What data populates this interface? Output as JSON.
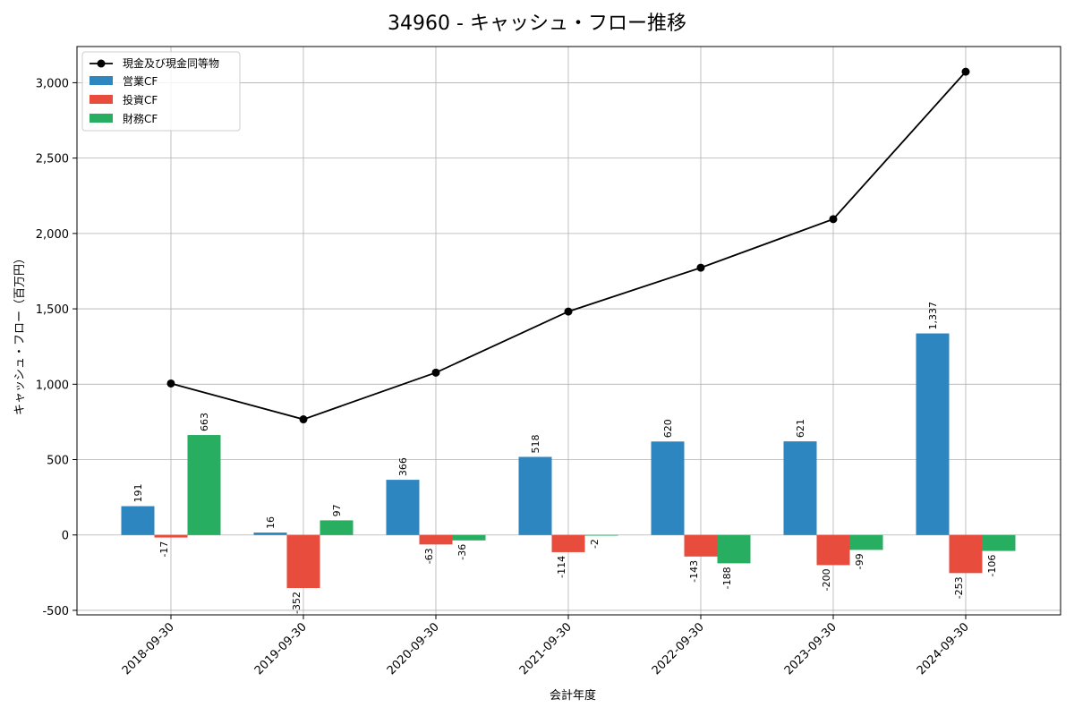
{
  "chart_data": {
    "type": "bar",
    "title": "34960 - キャッシュ・フロー推移",
    "xlabel": "会計年度",
    "ylabel": "キャッシュ・フロー（百万円）",
    "categories": [
      "2018-09-30",
      "2019-09-30",
      "2020-09-30",
      "2021-09-30",
      "2022-09-30",
      "2023-09-30",
      "2024-09-30"
    ],
    "ylim": [
      -530,
      3240
    ],
    "yticks": [
      -500,
      0,
      500,
      1000,
      1500,
      2000,
      2500,
      3000
    ],
    "ytick_labels": [
      "-500",
      "0",
      "500",
      "1,000",
      "1,500",
      "2,000",
      "2,500",
      "3,000"
    ],
    "grid": true,
    "legend_position": "top-left",
    "series": [
      {
        "name": "営業CF",
        "kind": "bar",
        "color": "#2e86c1",
        "values": [
          191,
          16,
          366,
          518,
          620,
          621,
          1337
        ],
        "labels": [
          "191",
          "16",
          "366",
          "518",
          "620",
          "621",
          "1,337"
        ]
      },
      {
        "name": "投資CF",
        "kind": "bar",
        "color": "#e74c3c",
        "values": [
          -17,
          -352,
          -63,
          -114,
          -143,
          -200,
          -253
        ],
        "labels": [
          "-17",
          "-352",
          "-63",
          "-114",
          "-143",
          "-200",
          "-253"
        ]
      },
      {
        "name": "財務CF",
        "kind": "bar",
        "color": "#27ae60",
        "values": [
          663,
          97,
          -36,
          -2,
          -188,
          -99,
          -106
        ],
        "labels": [
          "663",
          "97",
          "-36",
          "-2",
          "-188",
          "-99",
          "-106"
        ]
      }
    ],
    "line": {
      "name": "現金及び現金同等物",
      "color": "#000000",
      "values": [
        1005,
        767,
        1077,
        1482,
        1773,
        2095,
        3073
      ]
    }
  }
}
